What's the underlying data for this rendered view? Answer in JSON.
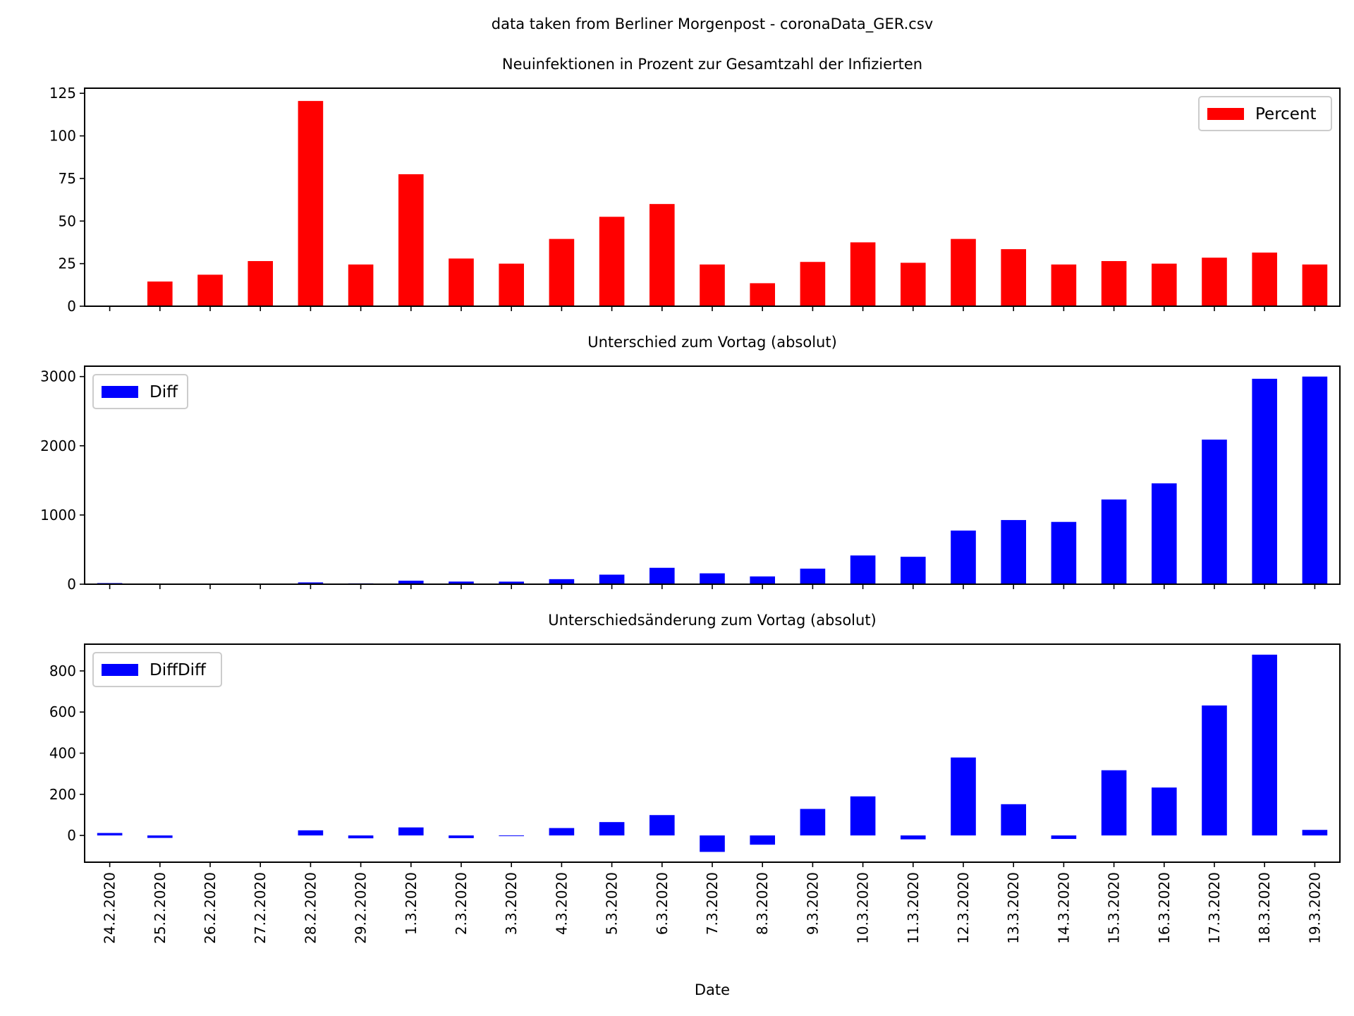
{
  "suptitle": "data taken from Berliner Morgenpost - coronaData_GER.csv",
  "xlabel": "Date",
  "chart_data": [
    {
      "type": "bar",
      "title": "Neuinfektionen in Prozent zur Gesamtzahl der Infizierten",
      "xlabel": "Date",
      "ylabel": "",
      "legend": {
        "entries": [
          "Percent"
        ],
        "position": "upper right"
      },
      "series": [
        {
          "name": "Percent",
          "color": "#ff0000",
          "values": [
            null,
            14.5,
            18.5,
            26.5,
            120.5,
            24.5,
            77.5,
            28,
            25,
            39.5,
            52.5,
            60,
            24.5,
            13.5,
            26,
            37.5,
            25.5,
            39.5,
            33.5,
            24.5,
            26.5,
            25,
            28.5,
            31.5,
            24.5
          ]
        }
      ],
      "ylim": [
        0,
        128
      ],
      "yticks": [
        0,
        25,
        50,
        75,
        100,
        125
      ],
      "grid": false
    },
    {
      "type": "bar",
      "title": "Unterschied zum Vortag (absolut)",
      "xlabel": "Date",
      "ylabel": "",
      "legend": {
        "entries": [
          "Diff"
        ],
        "position": "upper left"
      },
      "series": [
        {
          "name": "Diff",
          "color": "#0000ff",
          "values": [
            16,
            0,
            0,
            0,
            26,
            12,
            51,
            38,
            37,
            73,
            138,
            237,
            157,
            112,
            225,
            415,
            396,
            775,
            927,
            900,
            1224,
            1457,
            2089,
            2968,
            3000
          ]
        }
      ],
      "ylim": [
        0,
        3150
      ],
      "yticks": [
        0,
        1000,
        2000,
        3000
      ],
      "grid": false
    },
    {
      "type": "bar",
      "title": "Unterschiedsänderung zum Vortag (absolut)",
      "xlabel": "Date",
      "ylabel": "",
      "legend": {
        "entries": [
          "DiffDiff"
        ],
        "position": "upper left"
      },
      "series": [
        {
          "name": "DiffDiff",
          "color": "#0000ff",
          "values": [
            12,
            -12,
            0,
            0,
            25,
            -14,
            39,
            -13,
            -1,
            36,
            65,
            99,
            -80,
            -45,
            129,
            190,
            -19,
            379,
            152,
            -17,
            317,
            233,
            632,
            879,
            27
          ]
        }
      ],
      "ylim": [
        -130,
        930
      ],
      "yticks": [
        0,
        200,
        400,
        600,
        800
      ],
      "grid": false
    }
  ],
  "categories": [
    "24.2.2020",
    "25.2.2020",
    "26.2.2020",
    "27.2.2020",
    "28.2.2020",
    "29.2.2020",
    "1.3.2020",
    "2.3.2020",
    "3.3.2020",
    "4.3.2020",
    "5.3.2020",
    "6.3.2020",
    "7.3.2020",
    "8.3.2020",
    "9.3.2020",
    "10.3.2020",
    "11.3.2020",
    "12.3.2020",
    "13.3.2020",
    "14.3.2020",
    "15.3.2020",
    "16.3.2020",
    "17.3.2020",
    "18.3.2020",
    "19.3.2020"
  ]
}
